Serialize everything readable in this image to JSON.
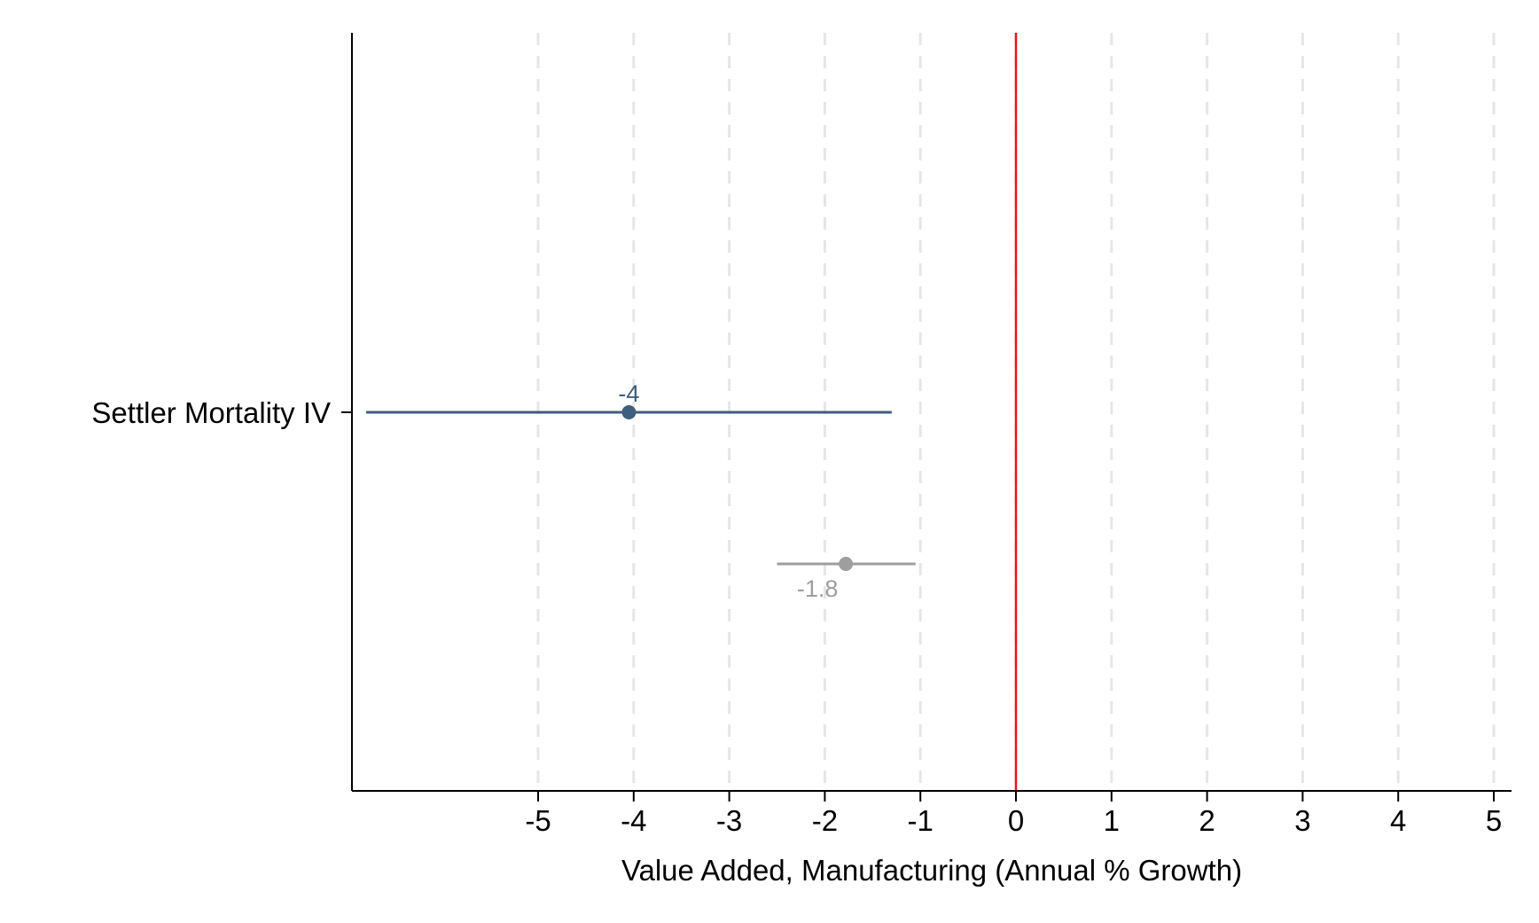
{
  "chart_data": {
    "type": "coefficient-plot",
    "orientation": "horizontal",
    "xlabel": "Value Added, Manufacturing (Annual % Growth)",
    "xlim": [
      -7.0,
      5.2
    ],
    "xticks": [
      -5,
      -4,
      -3,
      -2,
      -1,
      0,
      1,
      2,
      3,
      4,
      5
    ],
    "xtick_labels": [
      "-5",
      "-4",
      "-3",
      "-2",
      "-1",
      "0",
      "1",
      "2",
      "3",
      "4",
      "5"
    ],
    "vertical_gridlines": true,
    "gridline_style": "dashed",
    "reference_line": {
      "x": 0,
      "color": "#e8141b"
    },
    "y_categories": [
      "Settler Mortality IV"
    ],
    "series": [
      {
        "color": "#3e5f7d",
        "estimate": -4.05,
        "ci_low": -6.8,
        "ci_high": -1.3,
        "value_label": "-4",
        "label_position": "above",
        "row": "Settler Mortality IV"
      },
      {
        "color": "#9e9e9e",
        "estimate": -1.78,
        "ci_low": -2.5,
        "ci_high": -1.05,
        "value_label": "-1.8",
        "label_position": "below",
        "row": ""
      }
    ]
  }
}
